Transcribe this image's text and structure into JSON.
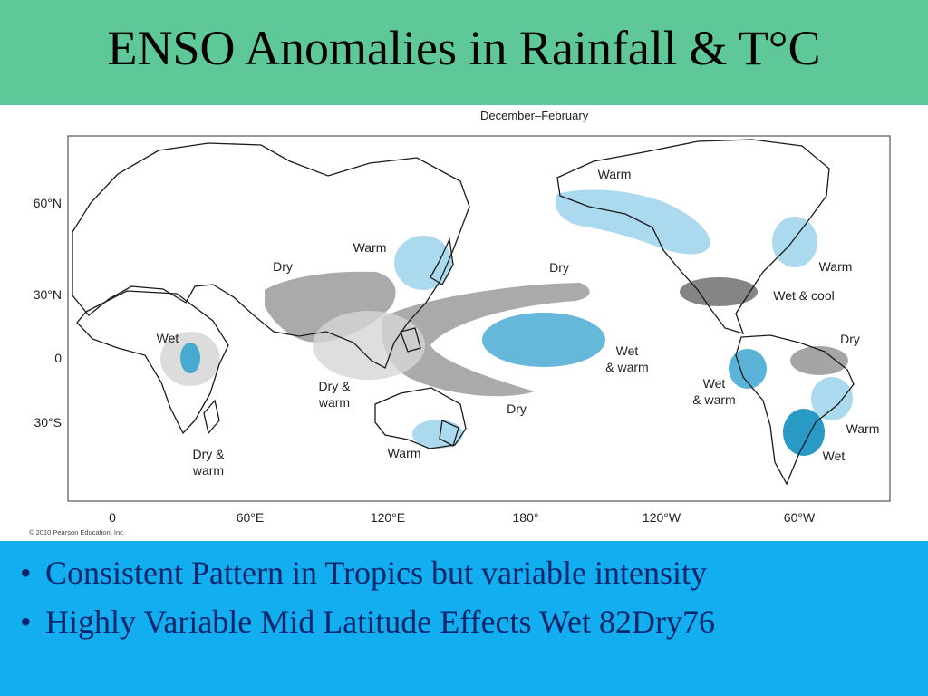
{
  "slide": {
    "title": "ENSO Anomalies in Rainfall & T°C",
    "colors": {
      "title_bar": "#5ec898",
      "bullet_panel": "#12aef0",
      "bullet_text": "#06266b"
    },
    "bullets": [
      {
        "marker": "•",
        "text": "Consistent Pattern in Tropics but variable intensity"
      },
      {
        "marker": "•",
        "text": "Highly Variable Mid Latitude Effects Wet 82Dry76"
      }
    ]
  },
  "map": {
    "caption": "December–February",
    "copyright": "© 2010 Pearson Education, Inc.",
    "lat_labels": [
      "60°N",
      "30°N",
      "0",
      "30°S"
    ],
    "lon_labels": [
      "0",
      "60°E",
      "120°E",
      "180°",
      "120°W",
      "60°W"
    ],
    "colors": {
      "warm_wet": "#9cd2ea",
      "wet": "#3ea6d0",
      "dry": "#8e8e8e",
      "dry_light": "#d6d6d6",
      "land_outline": "#1a1a1a"
    },
    "regions": [
      {
        "id": "africa-wet",
        "label": "Wet",
        "anomaly": "wet"
      },
      {
        "id": "africa-dry-warm",
        "label": "Dry &\nwarm",
        "anomaly": "dry-warm"
      },
      {
        "id": "japan-warm",
        "label": "Warm",
        "anomaly": "warm"
      },
      {
        "id": "asia-dry",
        "label": "Dry",
        "anomaly": "dry"
      },
      {
        "id": "pacific-dry",
        "label": "Dry",
        "anomaly": "dry"
      },
      {
        "id": "indonesia-dry-warm",
        "label": "Dry &\nwarm",
        "anomaly": "dry-warm"
      },
      {
        "id": "pacific-dry-south",
        "label": "Dry",
        "anomaly": "dry"
      },
      {
        "id": "australia-warm",
        "label": "Warm",
        "anomaly": "warm"
      },
      {
        "id": "alaska-warm",
        "label": "Warm",
        "anomaly": "warm"
      },
      {
        "id": "pacific-wet-warm",
        "label": "Wet\n& warm",
        "anomaly": "wet-warm"
      },
      {
        "id": "canada-warm",
        "label": "Warm",
        "anomaly": "warm"
      },
      {
        "id": "us-wet-cool",
        "label": "Wet & cool",
        "anomaly": "wet-cool"
      },
      {
        "id": "brazil-dry",
        "label": "Dry",
        "anomaly": "dry"
      },
      {
        "id": "ecuador-wet-warm",
        "label": "Wet\n& warm",
        "anomaly": "wet-warm"
      },
      {
        "id": "brazil-warm",
        "label": "Warm",
        "anomaly": "warm"
      },
      {
        "id": "argentina-wet",
        "label": "Wet",
        "anomaly": "wet"
      }
    ]
  }
}
